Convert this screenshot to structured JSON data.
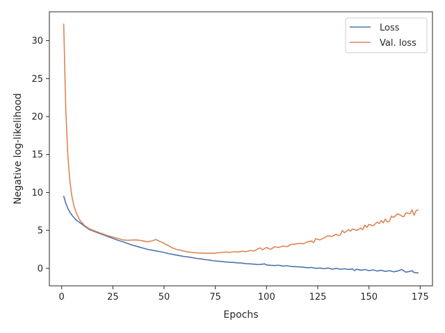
{
  "chart_data": {
    "type": "line",
    "title": "",
    "xlabel": "Epochs",
    "ylabel": "Negative log-likelihood",
    "xlim": [
      -6,
      181
    ],
    "ylim": [
      -2.3,
      33.8
    ],
    "xticks": [
      0,
      25,
      50,
      75,
      100,
      125,
      150,
      175
    ],
    "yticks": [
      0,
      5,
      10,
      15,
      20,
      25,
      30
    ],
    "grid": false,
    "legend": {
      "position": "top-right"
    },
    "series": [
      {
        "name": "Loss",
        "color": "#4c72b0",
        "points": [
          [
            1,
            9.5
          ],
          [
            2,
            8.6
          ],
          [
            3,
            7.9
          ],
          [
            4,
            7.4
          ],
          [
            5,
            7.0
          ],
          [
            6,
            6.7
          ],
          [
            7,
            6.4
          ],
          [
            8,
            6.2
          ],
          [
            9,
            6.0
          ],
          [
            10,
            5.8
          ],
          [
            11,
            5.6
          ],
          [
            12,
            5.4
          ],
          [
            13,
            5.2
          ],
          [
            14,
            5.05
          ],
          [
            15,
            4.95
          ],
          [
            16,
            4.85
          ],
          [
            17,
            4.75
          ],
          [
            18,
            4.65
          ],
          [
            19,
            4.55
          ],
          [
            20,
            4.45
          ],
          [
            22,
            4.25
          ],
          [
            24,
            4.05
          ],
          [
            26,
            3.85
          ],
          [
            28,
            3.65
          ],
          [
            30,
            3.5
          ],
          [
            32,
            3.3
          ],
          [
            34,
            3.1
          ],
          [
            36,
            2.95
          ],
          [
            38,
            2.8
          ],
          [
            40,
            2.65
          ],
          [
            42,
            2.5
          ],
          [
            44,
            2.4
          ],
          [
            46,
            2.3
          ],
          [
            48,
            2.2
          ],
          [
            50,
            2.1
          ],
          [
            52,
            1.95
          ],
          [
            54,
            1.85
          ],
          [
            56,
            1.75
          ],
          [
            58,
            1.65
          ],
          [
            60,
            1.55
          ],
          [
            62,
            1.5
          ],
          [
            64,
            1.4
          ],
          [
            66,
            1.3
          ],
          [
            68,
            1.25
          ],
          [
            70,
            1.15
          ],
          [
            72,
            1.1
          ],
          [
            74,
            1.0
          ],
          [
            76,
            0.95
          ],
          [
            78,
            0.92
          ],
          [
            80,
            0.85
          ],
          [
            82,
            0.8
          ],
          [
            84,
            0.78
          ],
          [
            86,
            0.72
          ],
          [
            88,
            0.7
          ],
          [
            90,
            0.62
          ],
          [
            92,
            0.6
          ],
          [
            94,
            0.55
          ],
          [
            96,
            0.5
          ],
          [
            98,
            0.55
          ],
          [
            99,
            0.6
          ],
          [
            100,
            0.45
          ],
          [
            102,
            0.4
          ],
          [
            104,
            0.38
          ],
          [
            106,
            0.42
          ],
          [
            108,
            0.3
          ],
          [
            110,
            0.35
          ],
          [
            112,
            0.25
          ],
          [
            114,
            0.22
          ],
          [
            116,
            0.2
          ],
          [
            118,
            0.15
          ],
          [
            120,
            0.08
          ],
          [
            122,
            0.12
          ],
          [
            124,
            0.0
          ],
          [
            126,
            0.05
          ],
          [
            128,
            -0.05
          ],
          [
            130,
            0.05
          ],
          [
            132,
            -0.1
          ],
          [
            134,
            0.0
          ],
          [
            136,
            -0.12
          ],
          [
            138,
            -0.05
          ],
          [
            140,
            -0.15
          ],
          [
            142,
            -0.08
          ],
          [
            143,
            -0.3
          ],
          [
            144,
            -0.1
          ],
          [
            146,
            -0.25
          ],
          [
            148,
            -0.15
          ],
          [
            150,
            -0.3
          ],
          [
            152,
            -0.2
          ],
          [
            154,
            -0.35
          ],
          [
            156,
            -0.25
          ],
          [
            158,
            -0.4
          ],
          [
            160,
            -0.3
          ],
          [
            162,
            -0.45
          ],
          [
            164,
            -0.35
          ],
          [
            166,
            -0.15
          ],
          [
            168,
            -0.5
          ],
          [
            170,
            -0.4
          ],
          [
            171,
            -0.3
          ],
          [
            172,
            -0.55
          ],
          [
            174,
            -0.6
          ]
        ]
      },
      {
        "name": "Val. loss",
        "color": "#dd8452",
        "points": [
          [
            1,
            32.2
          ],
          [
            2,
            21.0
          ],
          [
            3,
            15.0
          ],
          [
            4,
            11.5
          ],
          [
            5,
            9.5
          ],
          [
            6,
            8.2
          ],
          [
            7,
            7.4
          ],
          [
            8,
            6.8
          ],
          [
            9,
            6.3
          ],
          [
            10,
            6.0
          ],
          [
            11,
            5.7
          ],
          [
            12,
            5.5
          ],
          [
            13,
            5.3
          ],
          [
            14,
            5.15
          ],
          [
            15,
            5.05
          ],
          [
            16,
            4.95
          ],
          [
            17,
            4.85
          ],
          [
            18,
            4.75
          ],
          [
            19,
            4.65
          ],
          [
            20,
            4.55
          ],
          [
            22,
            4.35
          ],
          [
            24,
            4.2
          ],
          [
            26,
            4.05
          ],
          [
            28,
            3.9
          ],
          [
            30,
            3.75
          ],
          [
            32,
            3.7
          ],
          [
            34,
            3.72
          ],
          [
            36,
            3.75
          ],
          [
            38,
            3.7
          ],
          [
            40,
            3.6
          ],
          [
            42,
            3.5
          ],
          [
            44,
            3.62
          ],
          [
            46,
            3.8
          ],
          [
            48,
            3.55
          ],
          [
            50,
            3.3
          ],
          [
            52,
            3.0
          ],
          [
            54,
            2.7
          ],
          [
            56,
            2.5
          ],
          [
            58,
            2.4
          ],
          [
            60,
            2.25
          ],
          [
            62,
            2.15
          ],
          [
            64,
            2.1
          ],
          [
            66,
            2.05
          ],
          [
            68,
            2.02
          ],
          [
            70,
            2.0
          ],
          [
            72,
            2.0
          ],
          [
            74,
            1.98
          ],
          [
            76,
            2.05
          ],
          [
            78,
            2.1
          ],
          [
            80,
            2.15
          ],
          [
            82,
            2.1
          ],
          [
            84,
            2.2
          ],
          [
            86,
            2.15
          ],
          [
            88,
            2.25
          ],
          [
            90,
            2.2
          ],
          [
            92,
            2.35
          ],
          [
            94,
            2.3
          ],
          [
            96,
            2.6
          ],
          [
            97,
            2.7
          ],
          [
            98,
            2.45
          ],
          [
            100,
            2.75
          ],
          [
            102,
            2.5
          ],
          [
            104,
            2.85
          ],
          [
            106,
            2.75
          ],
          [
            108,
            2.95
          ],
          [
            110,
            2.85
          ],
          [
            112,
            3.15
          ],
          [
            114,
            3.2
          ],
          [
            116,
            3.3
          ],
          [
            118,
            3.25
          ],
          [
            120,
            3.5
          ],
          [
            122,
            3.6
          ],
          [
            123,
            3.4
          ],
          [
            124,
            3.9
          ],
          [
            126,
            3.75
          ],
          [
            128,
            4.0
          ],
          [
            130,
            4.3
          ],
          [
            132,
            4.2
          ],
          [
            134,
            4.5
          ],
          [
            135,
            4.3
          ],
          [
            136,
            4.4
          ],
          [
            137,
            5.0
          ],
          [
            138,
            4.7
          ],
          [
            140,
            5.1
          ],
          [
            141,
            4.9
          ],
          [
            142,
            5.2
          ],
          [
            144,
            5.0
          ],
          [
            146,
            5.3
          ],
          [
            147,
            5.1
          ],
          [
            148,
            5.7
          ],
          [
            149,
            5.4
          ],
          [
            150,
            5.8
          ],
          [
            152,
            5.6
          ],
          [
            154,
            6.1
          ],
          [
            155,
            5.9
          ],
          [
            156,
            6.3
          ],
          [
            157,
            6.0
          ],
          [
            158,
            6.5
          ],
          [
            159,
            6.1
          ],
          [
            160,
            6.2
          ],
          [
            161,
            6.9
          ],
          [
            162,
            6.7
          ],
          [
            164,
            7.2
          ],
          [
            166,
            6.9
          ],
          [
            167,
            6.8
          ],
          [
            168,
            7.3
          ],
          [
            170,
            7.2
          ],
          [
            171,
            7.7
          ],
          [
            172,
            7.0
          ],
          [
            173,
            7.6
          ],
          [
            174,
            7.7
          ]
        ]
      }
    ]
  }
}
